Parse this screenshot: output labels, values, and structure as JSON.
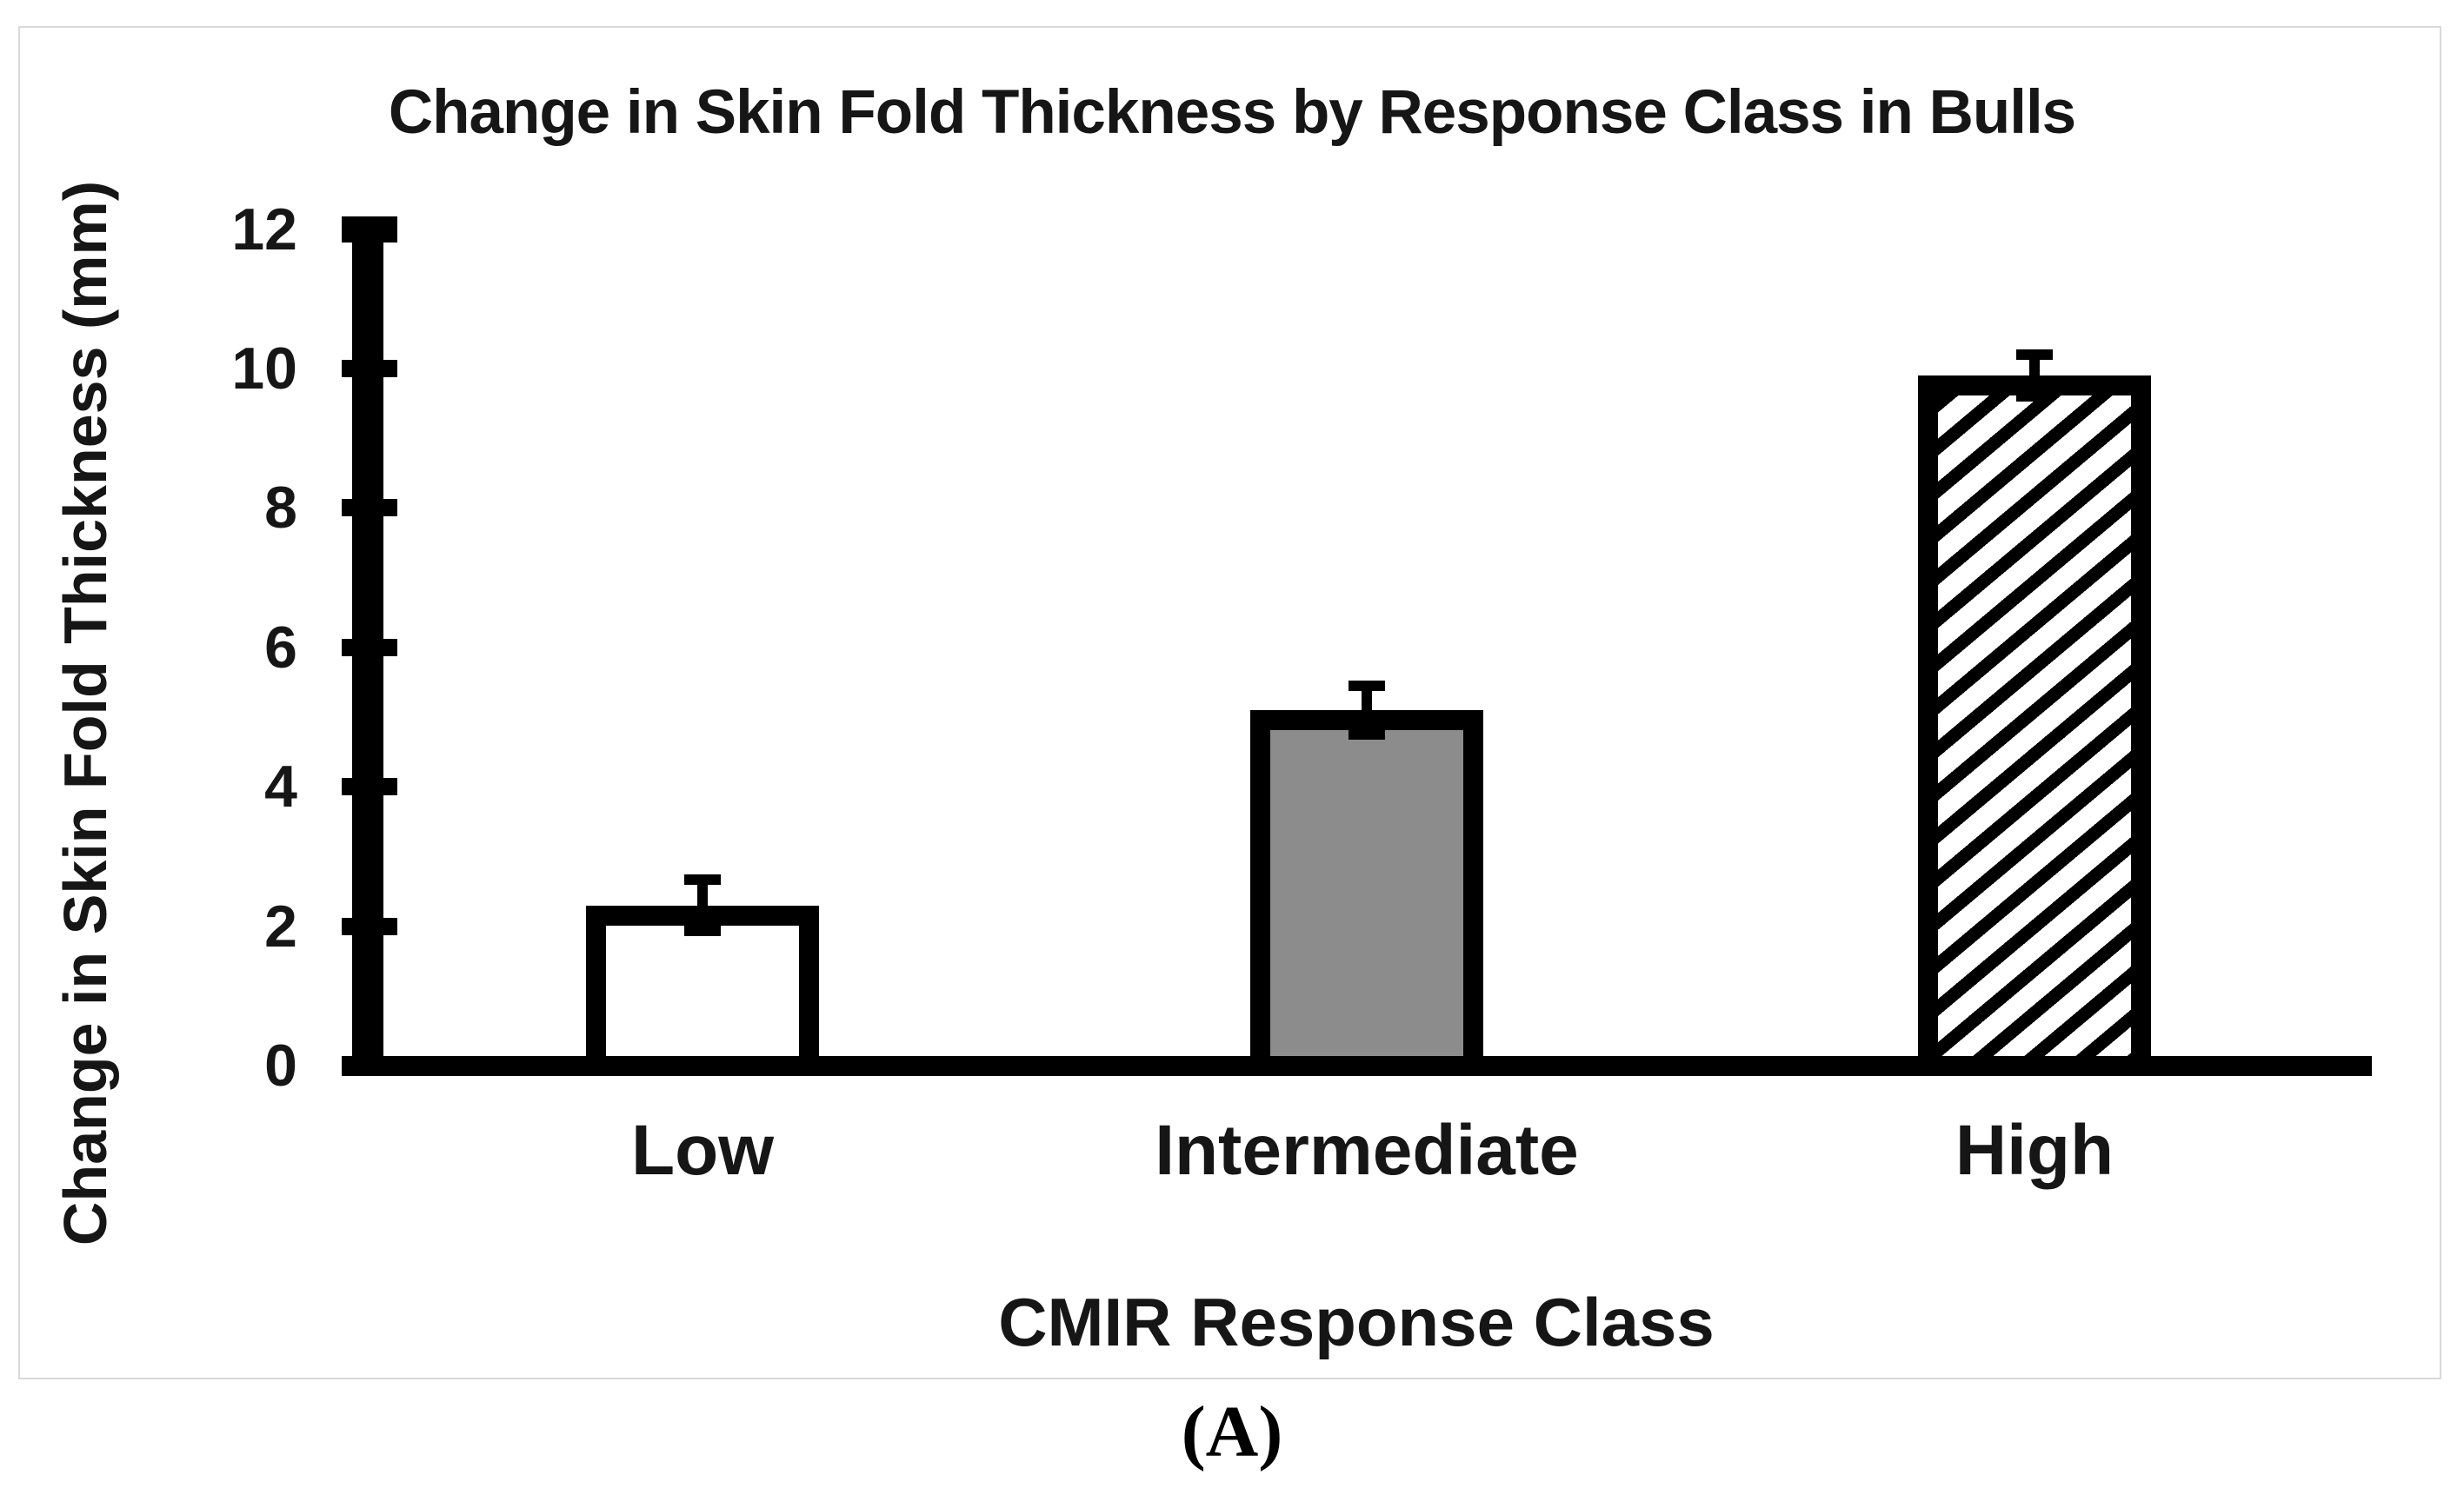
{
  "figure": {
    "caption": "(A)"
  },
  "chart_data": {
    "type": "bar",
    "title": "Change in Skin Fold Thickness by Response Class in Bulls",
    "xlabel": "CMIR Response Class",
    "ylabel": "Change in Skin Fold Thickness (mm)",
    "categories": [
      "Low",
      "Intermediate",
      "High"
    ],
    "values": [
      2.3,
      5.1,
      9.9
    ],
    "error_bars": [
      0.37,
      0.35,
      0.3
    ],
    "ylim": [
      0,
      12
    ],
    "yticks": [
      0,
      2,
      4,
      6,
      8,
      10,
      12
    ],
    "grid": false,
    "legend": false,
    "bar_styles": [
      {
        "fill": "#ffffff",
        "pattern": "none",
        "description": "white fill, thick black outline"
      },
      {
        "fill": "#8c8c8c",
        "pattern": "none",
        "description": "solid gray fill, thick black outline"
      },
      {
        "fill": "#ffffff",
        "pattern": "diagonal-hatch",
        "description": "black diagonal hatch on white, thick black outline"
      }
    ],
    "colors": {
      "bar_border": "#000000",
      "axis": "#000000",
      "text": "#161616",
      "panel_border": "#d9d9d9"
    }
  }
}
